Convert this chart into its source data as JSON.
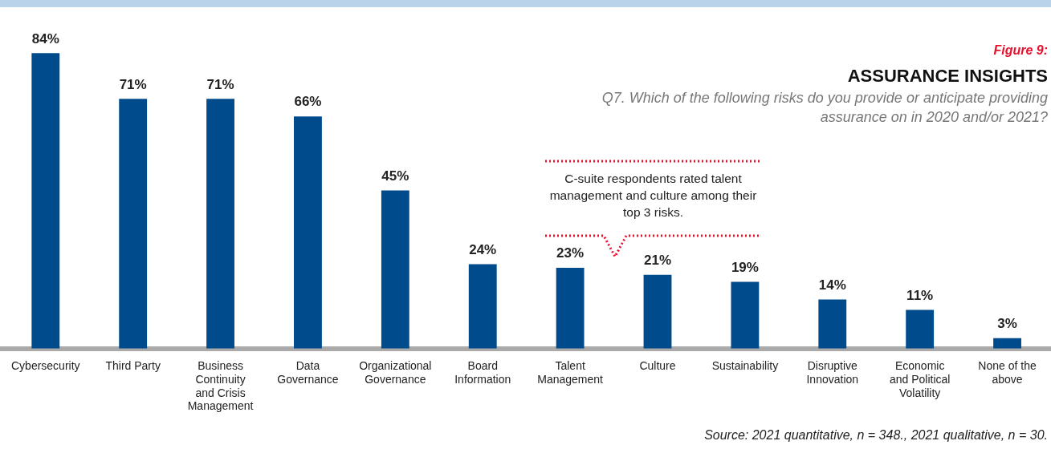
{
  "chart_data": {
    "type": "bar",
    "title": "ASSURANCE INSIGHTS",
    "subtitle": "Q7. Which of the following risks do you provide or anticipate providing assurance on in 2020 and/or 2021?",
    "categories": [
      "Cybersecurity",
      "Third Party",
      "Business Continuity and Crisis Management",
      "Data Governance",
      "Organizational Governance",
      "Board Information",
      "Talent Management",
      "Culture",
      "Sustainability",
      "Disruptive Innovation",
      "Economic and Political Volatility",
      "None of the above"
    ],
    "values": [
      84,
      71,
      71,
      66,
      45,
      24,
      23,
      21,
      19,
      14,
      11,
      3
    ],
    "value_labels": [
      "84%",
      "71%",
      "71%",
      "66%",
      "45%",
      "24%",
      "23%",
      "21%",
      "19%",
      "14%",
      "11%",
      "3%"
    ],
    "color": "#004b8c",
    "legend": false,
    "grid": false,
    "annotations": [
      "Figure 9:",
      "C-suite respondents rated talent management and culture among their top 3 risks.",
      "Source: 2021 quantitative, n = 348., 2021 qualitative, n = 30."
    ]
  }
}
